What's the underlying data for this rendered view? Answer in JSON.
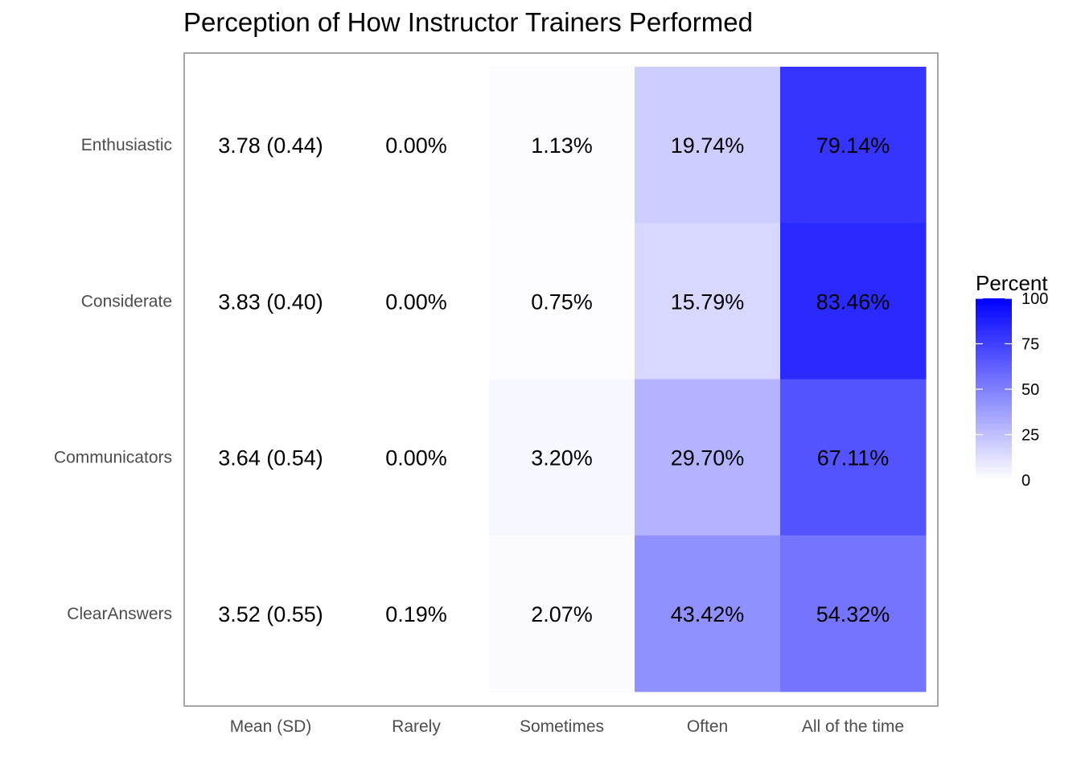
{
  "chart_data": {
    "type": "heatmap",
    "title": "Perception of How Instructor Trainers Performed",
    "xlabel": "",
    "ylabel": "",
    "columns": [
      "Mean (SD)",
      "Rarely",
      "Sometimes",
      "Often",
      "All of the time"
    ],
    "rows": [
      "Enthusiastic",
      "Considerate",
      "Communicators",
      "ClearAnswers"
    ],
    "mean_sd": [
      "3.78 (0.44)",
      "3.83 (0.40)",
      "3.64 (0.54)",
      "3.52 (0.55)"
    ],
    "values": [
      [
        0.0,
        1.13,
        19.74,
        79.14
      ],
      [
        0.0,
        0.75,
        15.79,
        83.46
      ],
      [
        0.0,
        3.2,
        29.7,
        67.11
      ],
      [
        0.19,
        2.07,
        43.42,
        54.32
      ]
    ],
    "labels": [
      [
        "0.00%",
        "1.13%",
        "19.74%",
        "79.14%"
      ],
      [
        "0.00%",
        "0.75%",
        "15.79%",
        "83.46%"
      ],
      [
        "0.00%",
        "3.20%",
        "29.70%",
        "67.11%"
      ],
      [
        "0.19%",
        "2.07%",
        "43.42%",
        "54.32%"
      ]
    ],
    "legend": {
      "title": "Percent",
      "position": "right",
      "range": [
        0,
        100
      ],
      "ticks": [
        0,
        25,
        50,
        75,
        100
      ],
      "low_color": "#ffffff",
      "high_color": "#0000ff"
    },
    "grid": false
  }
}
